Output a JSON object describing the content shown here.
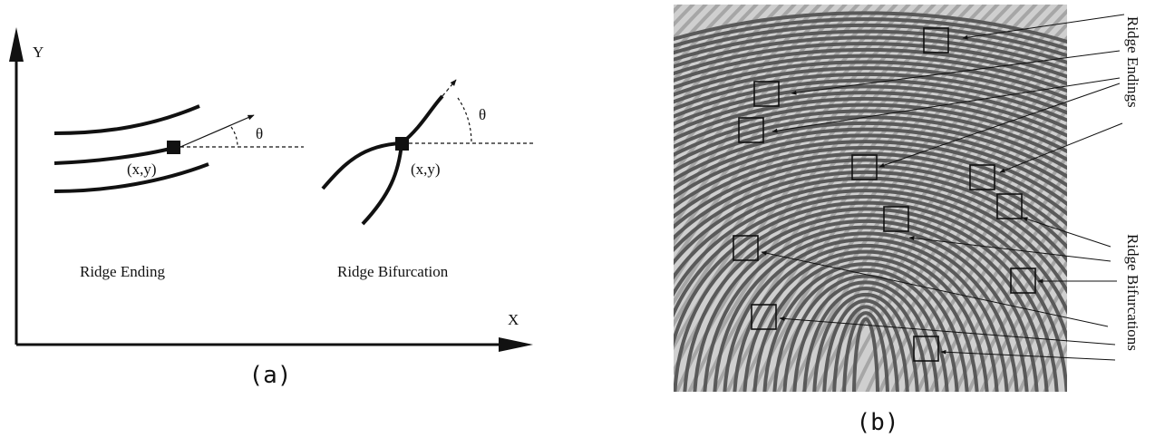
{
  "panel_a": {
    "y_axis": "Y",
    "x_axis": "X",
    "ending": {
      "label": "Ridge Ending",
      "coord": "(x,y)",
      "angle": "θ"
    },
    "bifurcation": {
      "label": "Ridge Bifurcation",
      "coord": "(x,y)",
      "angle": "θ"
    },
    "caption": "(a)"
  },
  "panel_b": {
    "endings_label": "Ridge Endings",
    "bifurcations_label": "Ridge Bifurcations",
    "caption": "(b)"
  }
}
